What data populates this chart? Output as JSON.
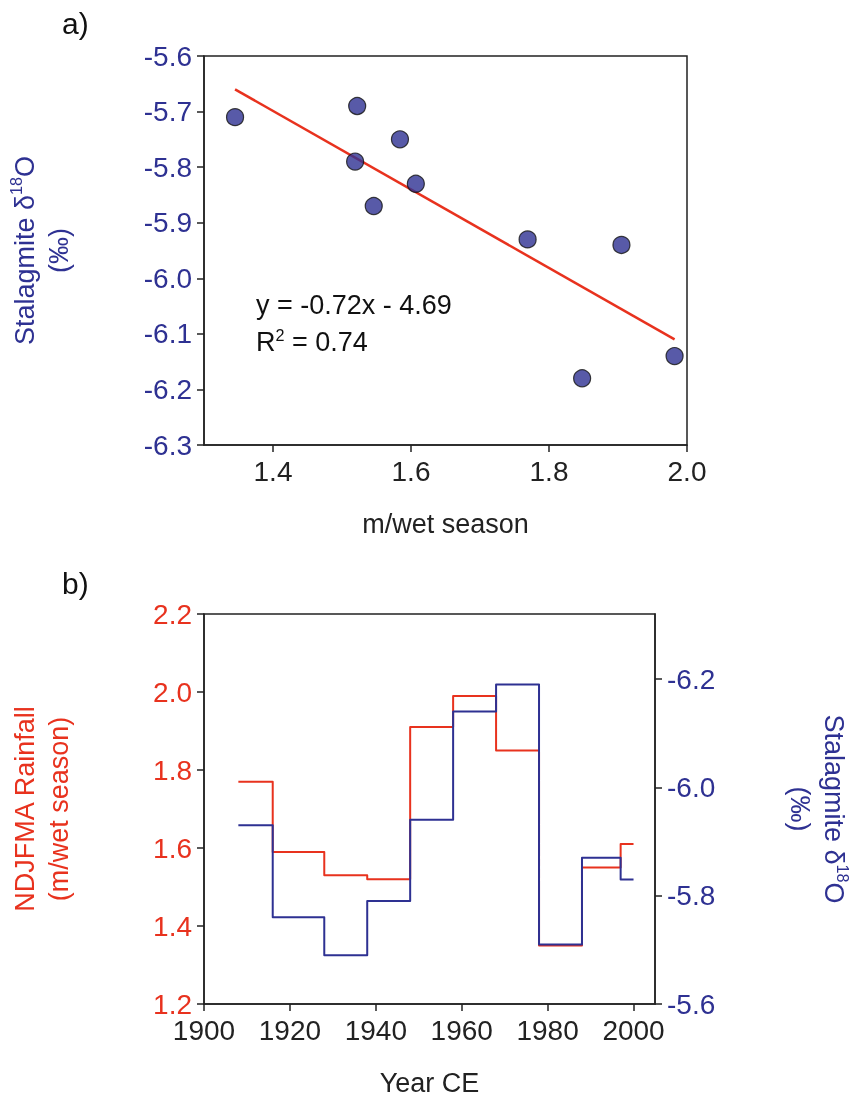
{
  "chart_data": [
    {
      "type": "scatter",
      "xlabel": "m/wet season",
      "ylabel": "Stalagmite δ$^{18}$O\n(‰)",
      "annotations": [
        "a)",
        "y = -0.72x - 4.69",
        "R$^{2}$ = 0.74"
      ],
      "xlim": [
        1.3,
        2.0
      ],
      "xticks": [
        1.4,
        1.6,
        1.8,
        {
          "value": 2.0,
          "label": "2.0"
        }
      ],
      "ylim": [
        -6.3,
        -5.6
      ],
      "yticks": [
        -6.3,
        -6.2,
        -6.1,
        {
          "value": -6.0,
          "label": "-6.0"
        },
        -5.9,
        -5.8,
        -5.7,
        -5.6
      ],
      "series": [
        {
          "marker": "circle",
          "color": "#2e3192",
          "x": [
            1.345,
            1.522,
            1.519,
            1.584,
            1.607,
            1.546,
            1.769,
            1.905,
            1.848,
            1.982
          ],
          "values": [
            -5.71,
            -5.69,
            -5.79,
            -5.75,
            -5.83,
            -5.87,
            -5.93,
            -5.94,
            -6.18,
            -6.14
          ]
        },
        {
          "type": "line",
          "marker": "none",
          "color": "#e8321e",
          "x": [
            1.345,
            1.982
          ],
          "values": [
            -5.66,
            -6.11
          ]
        }
      ]
    },
    {
      "type": "step",
      "xlabel": "Year CE",
      "ylabel": "NDJFMA Rainfall\n(m/wet season)",
      "y2label": "Stalagmite δ$^{18}$O\n(‰)",
      "annotations": [
        "b)"
      ],
      "xlim": [
        1900,
        2005
      ],
      "xticks": [
        1900,
        1920,
        1940,
        1960,
        1980,
        2000
      ],
      "ylim": [
        1.2,
        2.2
      ],
      "yticks": [
        1.2,
        1.4,
        1.6,
        1.8,
        {
          "value": 2.0,
          "label": "2.0"
        },
        2.2
      ],
      "y2lim": [
        -5.6,
        -6.32
      ],
      "y2ticks": [
        -5.6,
        -5.8,
        {
          "value": -6.0,
          "label": "-6.0"
        },
        -6.2
      ],
      "x": [
        1908,
        1916,
        1928,
        1938,
        1948,
        1958,
        1968,
        1978,
        1988,
        1997,
        2000
      ],
      "series": [
        {
          "color": "#e8321e",
          "values": [
            1.77,
            1.59,
            1.53,
            1.52,
            1.91,
            1.99,
            1.85,
            1.35,
            1.55,
            1.61,
            1.61
          ]
        },
        {
          "color": "#2e3192",
          "axis": "y2",
          "values": [
            -5.93,
            -5.76,
            -5.69,
            -5.79,
            -5.94,
            -6.14,
            -6.19,
            -5.71,
            -5.87,
            -5.83,
            -5.83
          ]
        }
      ]
    }
  ]
}
